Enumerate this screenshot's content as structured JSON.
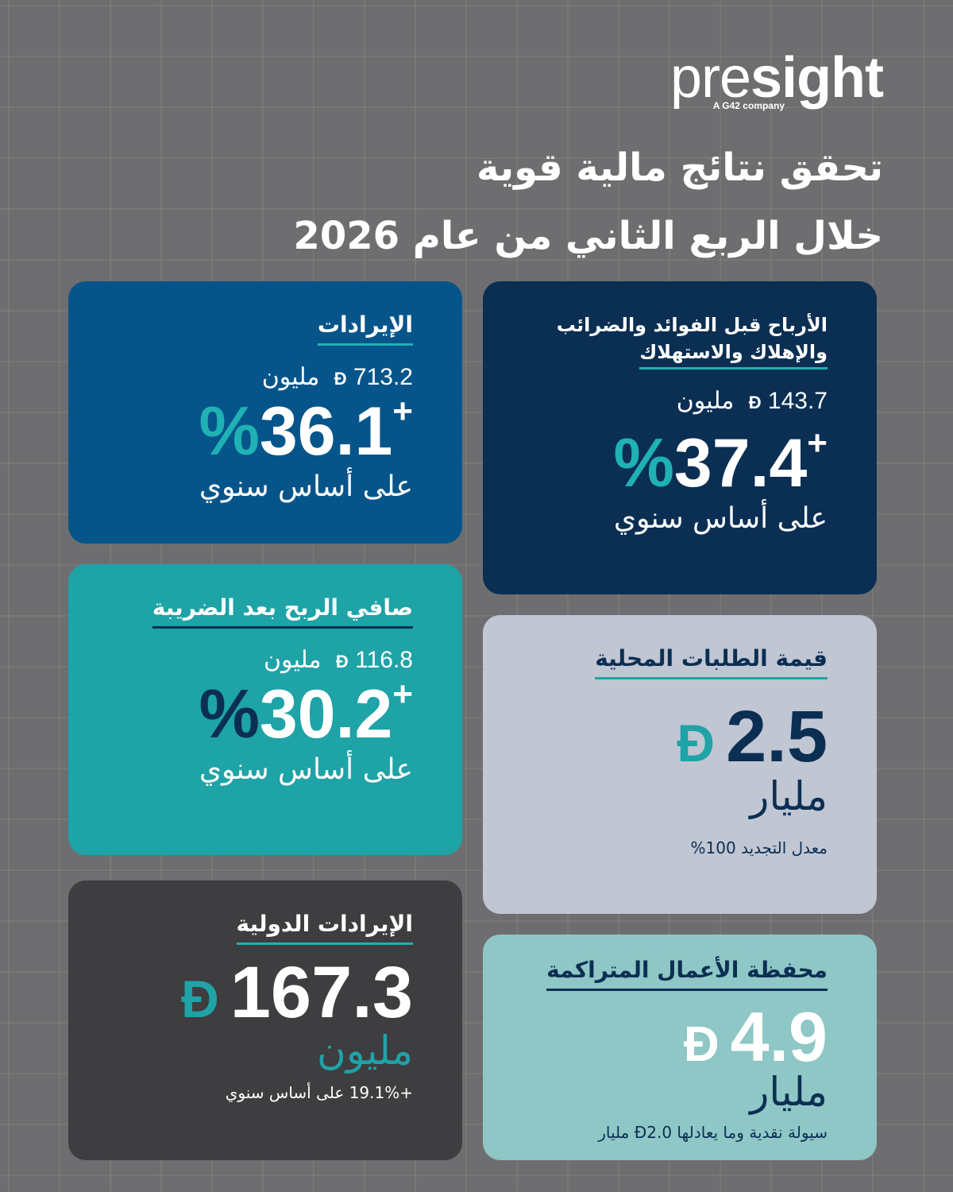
{
  "logo": {
    "word_light": "pre",
    "word_bold": "sight",
    "tagline": "A G42 company"
  },
  "headline": {
    "line1": "تحقق نتائج مالية قوية",
    "line2": "خلال الربع الثاني من عام 2026"
  },
  "currency_symbol": "Đ",
  "cards": {
    "revenue": {
      "title": "الإيرادات",
      "amount": "713.2",
      "unit": "مليون",
      "growth_sign": "+",
      "growth": "36.1",
      "pct": "%",
      "basis": "على أساس سنوي"
    },
    "ebitda": {
      "title_line1": "الأرباح قبل الفوائد والضرائب",
      "title_line2": "والإهلاك والاستهلاك",
      "amount": "143.7",
      "unit": "مليون",
      "growth_sign": "+",
      "growth": "37.4",
      "pct": "%",
      "basis": "على أساس سنوي"
    },
    "net_profit": {
      "title": "صافي الربح بعد الضريبة",
      "amount": "116.8",
      "unit": "مليون",
      "growth_sign": "+",
      "growth": "30.2",
      "pct": "%",
      "basis": "على أساس سنوي"
    },
    "local_orders": {
      "title": "قيمة الطلبات المحلية",
      "value": "2.5",
      "unit": "مليار",
      "note": "معدل التجديد 100%"
    },
    "intl_revenue": {
      "title": "الإيرادات الدولية",
      "value": "167.3",
      "unit": "مليون",
      "note": "+19.1% على أساس سنوي"
    },
    "backlog": {
      "title": "محفظة الأعمال المتراكمة",
      "value": "4.9",
      "unit": "مليار",
      "note": "سيولة نقدية وما يعادلها Đ2.0 مليار"
    }
  },
  "colors": {
    "background": "#6e6e70",
    "teal": "#1ea3a7",
    "navy": "#0b2f53",
    "blue": "#06558a",
    "lavender": "#c1c6d3",
    "dark": "#3e3d3f",
    "mint": "#8ec7c5"
  }
}
